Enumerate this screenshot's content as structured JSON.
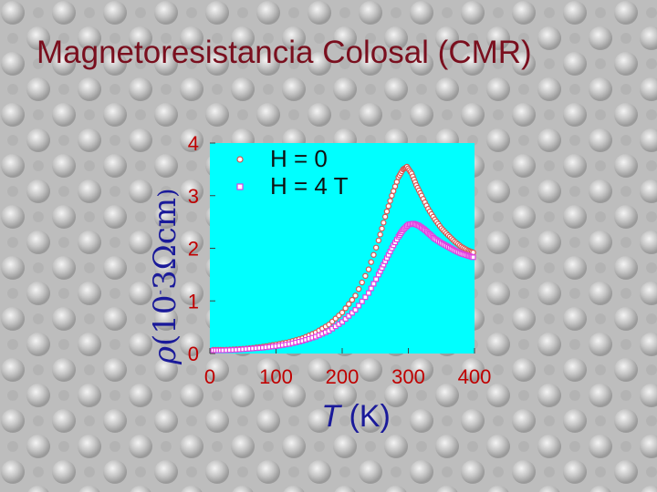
{
  "slide": {
    "title": "Magnetoresistancia Colosal (CMR)"
  },
  "colors": {
    "plot_background": "#00ffff",
    "title": "#7a0f1e",
    "tick_labels": "#c00000",
    "axis_labels": "#1a1a9a",
    "series_h0": "#d9534f",
    "series_h4": "#e040e0"
  },
  "chart_data": {
    "type": "scatter",
    "xlabel_symbol": "T",
    "xlabel_unit": "(K)",
    "ylabel_parts": [
      "ρ",
      "(",
      "1",
      "0",
      "-",
      "3",
      "Ω",
      "c",
      "m",
      ")"
    ],
    "xlim": [
      0,
      400
    ],
    "ylim": [
      0,
      4
    ],
    "x_ticks": [
      "0",
      "100",
      "200",
      "300",
      "400"
    ],
    "y_ticks": [
      "0",
      "1",
      "2",
      "3",
      "4"
    ],
    "legend": {
      "position": "top-left",
      "entries": [
        "H = 0",
        "H = 4 T"
      ]
    },
    "series": [
      {
        "name": "H = 0",
        "marker": "circle",
        "points": [
          [
            5,
            0.07
          ],
          [
            20,
            0.07
          ],
          [
            40,
            0.08
          ],
          [
            60,
            0.1
          ],
          [
            80,
            0.13
          ],
          [
            100,
            0.17
          ],
          [
            120,
            0.22
          ],
          [
            140,
            0.29
          ],
          [
            160,
            0.4
          ],
          [
            180,
            0.55
          ],
          [
            200,
            0.78
          ],
          [
            220,
            1.1
          ],
          [
            240,
            1.6
          ],
          [
            255,
            2.15
          ],
          [
            265,
            2.6
          ],
          [
            275,
            3.0
          ],
          [
            285,
            3.35
          ],
          [
            292,
            3.5
          ],
          [
            298,
            3.55
          ],
          [
            305,
            3.42
          ],
          [
            312,
            3.2
          ],
          [
            320,
            3.0
          ],
          [
            330,
            2.75
          ],
          [
            340,
            2.55
          ],
          [
            350,
            2.38
          ],
          [
            360,
            2.25
          ],
          [
            370,
            2.13
          ],
          [
            380,
            2.03
          ],
          [
            390,
            1.96
          ],
          [
            398,
            1.92
          ]
        ]
      },
      {
        "name": "H = 4 T",
        "marker": "square",
        "points": [
          [
            5,
            0.06
          ],
          [
            20,
            0.06
          ],
          [
            40,
            0.07
          ],
          [
            60,
            0.09
          ],
          [
            80,
            0.11
          ],
          [
            100,
            0.14
          ],
          [
            120,
            0.18
          ],
          [
            140,
            0.24
          ],
          [
            160,
            0.32
          ],
          [
            180,
            0.43
          ],
          [
            200,
            0.6
          ],
          [
            220,
            0.83
          ],
          [
            240,
            1.15
          ],
          [
            255,
            1.5
          ],
          [
            265,
            1.75
          ],
          [
            275,
            2.0
          ],
          [
            285,
            2.22
          ],
          [
            292,
            2.35
          ],
          [
            300,
            2.45
          ],
          [
            308,
            2.47
          ],
          [
            316,
            2.43
          ],
          [
            324,
            2.36
          ],
          [
            332,
            2.27
          ],
          [
            340,
            2.18
          ],
          [
            350,
            2.1
          ],
          [
            360,
            2.03
          ],
          [
            370,
            1.96
          ],
          [
            380,
            1.9
          ],
          [
            390,
            1.86
          ],
          [
            398,
            1.83
          ]
        ]
      }
    ]
  }
}
